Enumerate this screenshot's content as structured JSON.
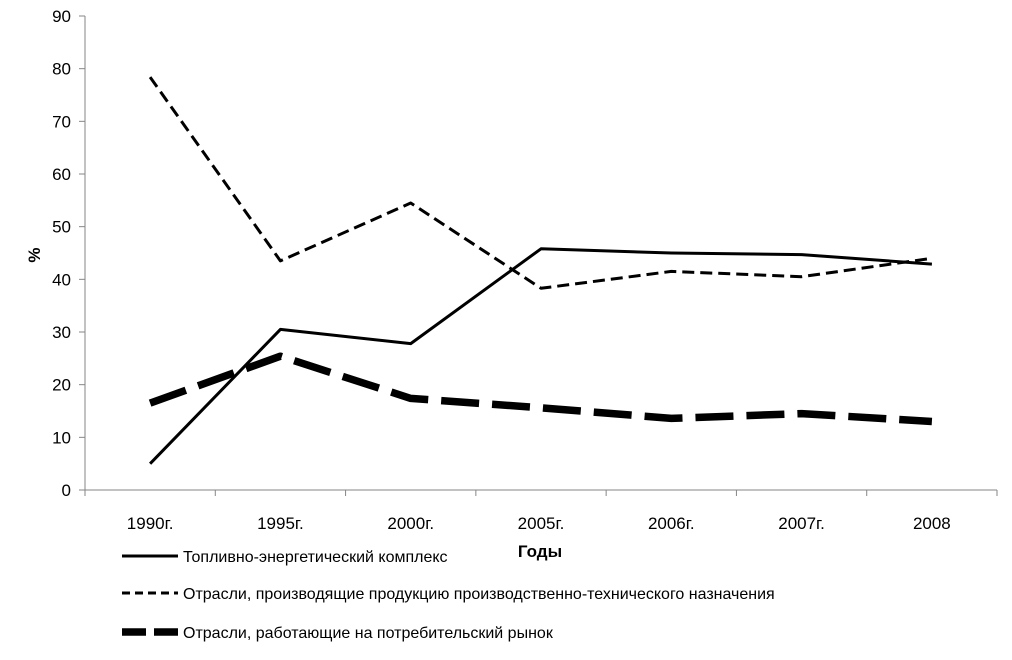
{
  "chart_data": {
    "type": "line",
    "title": "",
    "xlabel": "Годы",
    "ylabel": "%",
    "ylim": [
      0,
      90
    ],
    "y_ticks": [
      0,
      10,
      20,
      30,
      40,
      50,
      60,
      70,
      80,
      90
    ],
    "grid": false,
    "legend_position": "bottom",
    "categories": [
      "1990г.",
      "1995г.",
      "2000г.",
      "2005г.",
      "2006г.",
      "2007г.",
      "2008"
    ],
    "series": [
      {
        "name": "Топливно-энергетический комплекс",
        "line_style": "solid",
        "color": "#000000",
        "values": [
          5,
          30.5,
          27.8,
          45.8,
          45,
          44.7,
          42.9
        ]
      },
      {
        "name": "Отрасли, производящие продукцию производственно-технического назначения",
        "line_style": "short-dash",
        "color": "#000000",
        "values": [
          78.4,
          43.5,
          54.5,
          38.3,
          41.5,
          40.5,
          44
        ]
      },
      {
        "name": "Отрасли, работающие на потребительский рынок",
        "line_style": "long-dash-thick",
        "color": "#000000",
        "values": [
          16.5,
          25.4,
          17.4,
          15.6,
          13.6,
          14.5,
          13
        ]
      }
    ]
  }
}
